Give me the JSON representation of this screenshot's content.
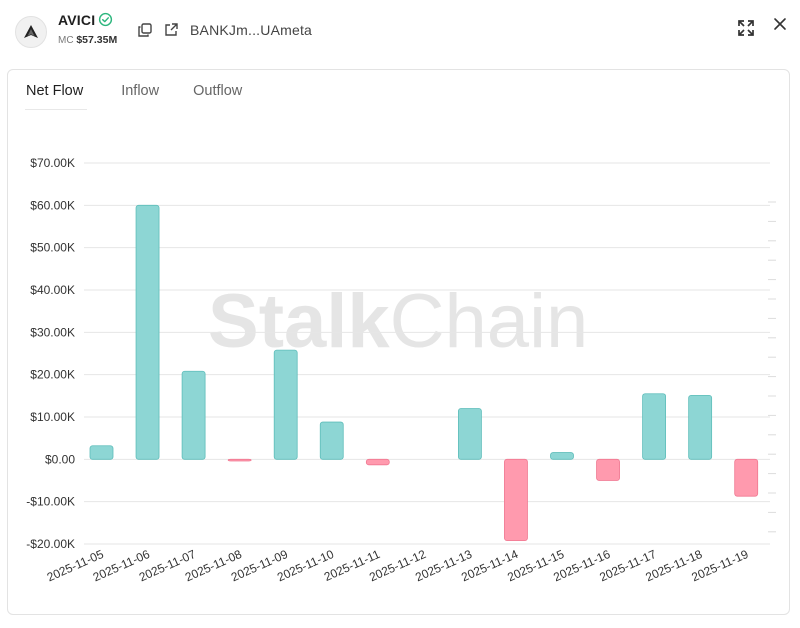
{
  "header": {
    "token_name": "AVICI",
    "mc_label": "MC",
    "mc_value": "$57.35M",
    "address": "BANKJm...UAmeta",
    "icons": {
      "logo": "avici-logo-icon",
      "verified": "verified-check-icon",
      "copy": "copy-icon",
      "external": "external-link-icon",
      "expand": "expand-icon",
      "close": "close-icon"
    }
  },
  "tabs": [
    {
      "label": "Net Flow",
      "active": true
    },
    {
      "label": "Inflow",
      "active": false
    },
    {
      "label": "Outflow",
      "active": false
    }
  ],
  "watermark": {
    "part1": "Stalk",
    "part2": "Chain"
  },
  "colors": {
    "positive": "#8dd6d4",
    "positive_stroke": "#5ebdba",
    "negative": "#ff9aae",
    "negative_stroke": "#f07891",
    "grid": "#e6e6e6"
  },
  "chart_data": {
    "type": "bar",
    "title": "",
    "xlabel": "",
    "ylabel": "",
    "categories": [
      "2025-11-05",
      "2025-11-06",
      "2025-11-07",
      "2025-11-08",
      "2025-11-09",
      "2025-11-10",
      "2025-11-11",
      "2025-11-12",
      "2025-11-13",
      "2025-11-14",
      "2025-11-15",
      "2025-11-16",
      "2025-11-17",
      "2025-11-18",
      "2025-11-19"
    ],
    "values": [
      3200,
      60000,
      20800,
      -400,
      25800,
      8800,
      -1300,
      0,
      12000,
      -19200,
      1600,
      -5000,
      15500,
      15100,
      -8700
    ],
    "ylim": [
      -20000,
      70000
    ],
    "yticks": [
      70000,
      60000,
      50000,
      40000,
      30000,
      20000,
      10000,
      0,
      -10000,
      -20000
    ],
    "ytick_labels": [
      "$70.00K",
      "$60.00K",
      "$50.00K",
      "$40.00K",
      "$30.00K",
      "$20.00K",
      "$10.00K",
      "$0.00",
      "-$10.00K",
      "-$20.00K"
    ],
    "grid": true
  }
}
